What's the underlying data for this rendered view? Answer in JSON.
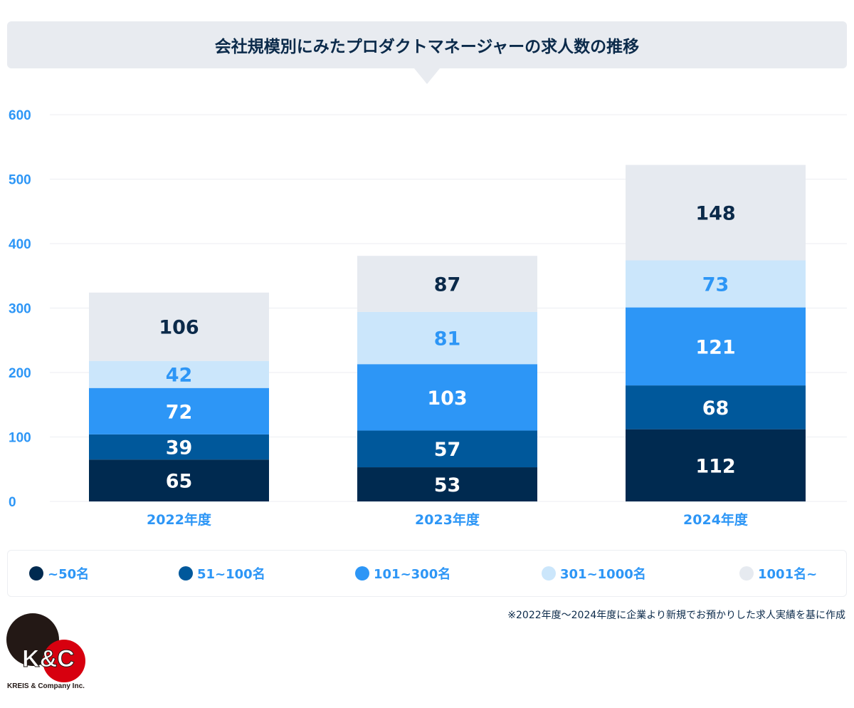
{
  "chart_data": {
    "type": "bar",
    "stacked": true,
    "title": "会社規模別にみたプロダクトマネージャーの求人数の推移",
    "categories": [
      "2022年度",
      "2023年度",
      "2024年度"
    ],
    "series": [
      {
        "name": "~50名",
        "values": [
          65,
          53,
          112
        ],
        "color": "#002a50",
        "label_color": "#ffffff"
      },
      {
        "name": "51~100名",
        "values": [
          39,
          57,
          68
        ],
        "color": "#00589b",
        "label_color": "#ffffff"
      },
      {
        "name": "101~300名",
        "values": [
          72,
          103,
          121
        ],
        "color": "#2d96f6",
        "label_color": "#ffffff"
      },
      {
        "name": "301~1000名",
        "values": [
          42,
          81,
          73
        ],
        "color": "#cbe6fb",
        "label_color": "#2d96f6"
      },
      {
        "name": "1001名~",
        "values": [
          106,
          87,
          148
        ],
        "color": "#e6eaf0",
        "label_color": "#0b2a4a"
      }
    ],
    "ylim": [
      0,
      600
    ],
    "yticks": [
      0,
      100,
      200,
      300,
      400,
      500,
      600
    ],
    "grid": true,
    "legend": "bottom"
  },
  "footnote": "※2022年度～2024年度に企業より新規でお預かりした求人実績を基に作成",
  "logo": {
    "mark": "K&C",
    "company": "KREIS & Company Inc."
  }
}
